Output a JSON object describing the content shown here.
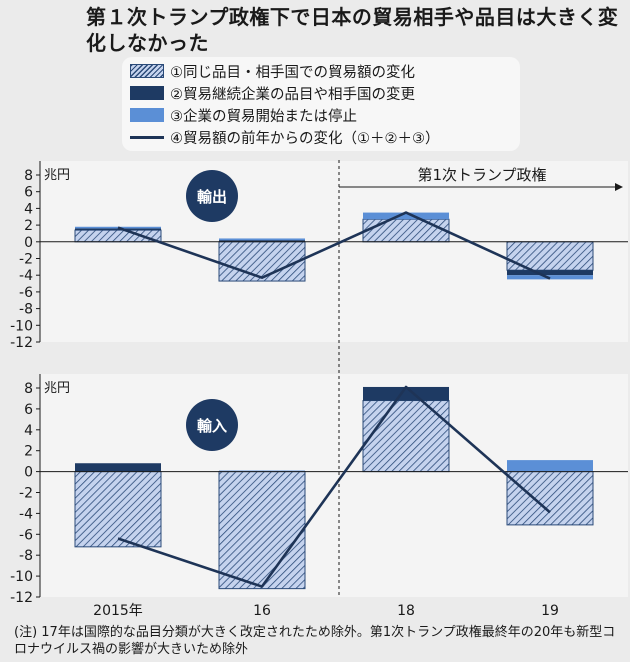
{
  "title": "第１次トランプ政権下で日本の貿易相手や品目は大きく変化しなかった",
  "legend": [
    {
      "label": "①同じ品目・相手国での貿易額の変化",
      "style": "hatch"
    },
    {
      "label": "②貿易継続企業の品目や相手国の変更",
      "style": "dark"
    },
    {
      "label": "③企業の貿易開始または停止",
      "style": "mid"
    },
    {
      "label": "④貿易額の前年からの変化（①＋②＋③）",
      "style": "line"
    }
  ],
  "colors": {
    "hatch_fill": "#c5d3ee",
    "hatch_stroke": "#2a4a78",
    "dark": "#1e3a63",
    "mid": "#5b8fd6",
    "line": "#1e3457",
    "badge": "#1e3a63"
  },
  "era_label": "第1次トランプ政権",
  "note": "(注) 17年は国際的な品目分類が大きく改定されたため除外。第1次トランプ政権最終年の20年も新型コロナウイルス禍の影響が大きいため除外",
  "chart_data": [
    {
      "type": "bar",
      "panel_label": "輸出",
      "unit": "兆円",
      "categories": [
        "2015年",
        "16",
        "18",
        "19"
      ],
      "ylim": [
        -12,
        8
      ],
      "yticks": [
        "8",
        "6",
        "4",
        "2",
        "0",
        "-2",
        "-4",
        "-6",
        "-8",
        "-10",
        "-12"
      ],
      "grid": false,
      "series": [
        {
          "name": "①同じ品目・相手国での貿易額の変化",
          "values": [
            1.4,
            -4.7,
            2.7,
            -3.4
          ]
        },
        {
          "name": "②貿易継続企業の品目や相手国の変更",
          "values": [
            0.2,
            0.2,
            0.0,
            -0.6
          ]
        },
        {
          "name": "③企業の貿易開始または停止",
          "values": [
            0.2,
            0.2,
            0.8,
            -0.5
          ]
        },
        {
          "name": "④貿易額の前年からの変化（①＋②＋③）",
          "type": "line",
          "values": [
            1.7,
            -4.3,
            3.5,
            -4.4
          ]
        }
      ]
    },
    {
      "type": "bar",
      "panel_label": "輸入",
      "unit": "兆円",
      "categories": [
        "2015年",
        "16",
        "18",
        "19"
      ],
      "ylim": [
        -12,
        8
      ],
      "yticks": [
        "8",
        "6",
        "4",
        "2",
        "0",
        "-2",
        "-4",
        "-6",
        "-8",
        "-10",
        "-12"
      ],
      "grid": false,
      "series": [
        {
          "name": "①同じ品目・相手国での貿易額の変化",
          "values": [
            -7.2,
            -11.2,
            6.8,
            -5.1
          ]
        },
        {
          "name": "②貿易継続企業の品目や相手国の変更",
          "values": [
            0.8,
            0.0,
            1.3,
            0.0
          ]
        },
        {
          "name": "③企業の貿易開始または停止",
          "values": [
            0.0,
            0.1,
            0.0,
            1.1
          ]
        },
        {
          "name": "④貿易額の前年からの変化（①＋②＋③）",
          "type": "line",
          "values": [
            -6.4,
            -11.0,
            8.1,
            -3.9
          ]
        }
      ]
    }
  ]
}
